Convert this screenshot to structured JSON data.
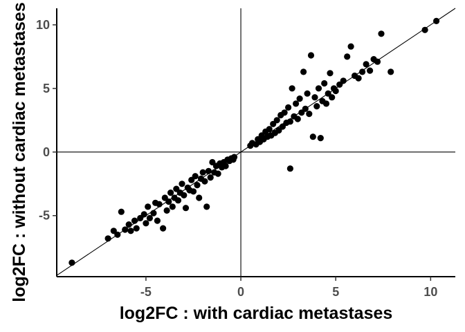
{
  "chart_data": {
    "type": "scatter",
    "title": "",
    "xlabel": "log2FC : with cardiac metastases",
    "ylabel": "log2FC : without cardiac metastases",
    "xlim": [
      -9.7,
      11.3
    ],
    "ylim": [
      -9.8,
      11.3
    ],
    "xticks": [
      -5,
      0,
      5,
      10
    ],
    "yticks": [
      -5,
      0,
      5,
      10
    ],
    "reference_lines": {
      "vertical_x": 0,
      "horizontal_y": 0,
      "identity_line": "y = x"
    },
    "grid": false,
    "point_color": "#000000",
    "line_color": "#000000",
    "points": [
      [
        -8.9,
        -8.7
      ],
      [
        -7.0,
        -6.8
      ],
      [
        -6.7,
        -6.2
      ],
      [
        -6.5,
        -6.5
      ],
      [
        -6.3,
        -4.7
      ],
      [
        -6.1,
        -6.1
      ],
      [
        -5.9,
        -5.7
      ],
      [
        -5.8,
        -6.2
      ],
      [
        -5.6,
        -5.4
      ],
      [
        -5.5,
        -6.0
      ],
      [
        -5.3,
        -5.2
      ],
      [
        -5.1,
        -4.9
      ],
      [
        -5.0,
        -5.6
      ],
      [
        -4.9,
        -4.3
      ],
      [
        -4.8,
        -5.2
      ],
      [
        -4.6,
        -4.8
      ],
      [
        -4.5,
        -4.0
      ],
      [
        -4.4,
        -5.4
      ],
      [
        -4.3,
        -4.1
      ],
      [
        -4.1,
        -6.0
      ],
      [
        -4.0,
        -3.6
      ],
      [
        -3.9,
        -4.6
      ],
      [
        -3.8,
        -3.9
      ],
      [
        -3.7,
        -3.2
      ],
      [
        -3.6,
        -4.3
      ],
      [
        -3.5,
        -3.6
      ],
      [
        -3.4,
        -2.9
      ],
      [
        -3.3,
        -3.8
      ],
      [
        -3.2,
        -3.2
      ],
      [
        -3.1,
        -2.5
      ],
      [
        -3.0,
        -3.4
      ],
      [
        -2.9,
        -4.4
      ],
      [
        -2.8,
        -2.8
      ],
      [
        -2.7,
        -3.0
      ],
      [
        -2.6,
        -2.2
      ],
      [
        -2.5,
        -3.1
      ],
      [
        -2.4,
        -1.9
      ],
      [
        -2.3,
        -2.6
      ],
      [
        -2.2,
        -3.6
      ],
      [
        -2.1,
        -2.1
      ],
      [
        -2.0,
        -1.6
      ],
      [
        -1.9,
        -2.3
      ],
      [
        -1.8,
        -4.3
      ],
      [
        -1.7,
        -1.5
      ],
      [
        -1.6,
        -2.0
      ],
      [
        -1.5,
        -0.8
      ],
      [
        -1.4,
        -1.6
      ],
      [
        -1.3,
        -1.1
      ],
      [
        -1.2,
        -1.7
      ],
      [
        -1.1,
        -0.9
      ],
      [
        -1.0,
        -1.2
      ],
      [
        -0.9,
        -0.8
      ],
      [
        -0.8,
        -1.1
      ],
      [
        -0.7,
        -0.6
      ],
      [
        -0.6,
        -0.7
      ],
      [
        -0.5,
        -0.5
      ],
      [
        -0.4,
        -0.6
      ],
      [
        -0.35,
        -0.4
      ],
      [
        0.5,
        0.5
      ],
      [
        0.6,
        0.7
      ],
      [
        0.8,
        0.6
      ],
      [
        0.9,
        1.0
      ],
      [
        1.0,
        0.8
      ],
      [
        1.1,
        1.3
      ],
      [
        1.2,
        1.0
      ],
      [
        1.3,
        1.6
      ],
      [
        1.4,
        1.2
      ],
      [
        1.5,
        1.8
      ],
      [
        1.6,
        1.3
      ],
      [
        1.7,
        2.2
      ],
      [
        1.8,
        1.5
      ],
      [
        1.9,
        2.5
      ],
      [
        2.0,
        1.7
      ],
      [
        2.1,
        2.9
      ],
      [
        2.2,
        2.0
      ],
      [
        2.3,
        3.1
      ],
      [
        2.4,
        2.3
      ],
      [
        2.5,
        3.5
      ],
      [
        2.6,
        2.4
      ],
      [
        2.6,
        -1.3
      ],
      [
        2.7,
        5.0
      ],
      [
        2.8,
        2.8
      ],
      [
        2.9,
        3.8
      ],
      [
        3.0,
        2.6
      ],
      [
        3.1,
        4.2
      ],
      [
        3.2,
        3.1
      ],
      [
        3.3,
        6.3
      ],
      [
        3.4,
        3.4
      ],
      [
        3.5,
        4.6
      ],
      [
        3.6,
        3.0
      ],
      [
        3.7,
        7.6
      ],
      [
        3.8,
        1.2
      ],
      [
        3.9,
        4.3
      ],
      [
        4.0,
        3.6
      ],
      [
        4.1,
        5.0
      ],
      [
        4.2,
        1.1
      ],
      [
        4.3,
        4.0
      ],
      [
        4.4,
        5.4
      ],
      [
        4.5,
        3.8
      ],
      [
        4.6,
        4.6
      ],
      [
        4.7,
        6.2
      ],
      [
        4.8,
        4.3
      ],
      [
        4.9,
        5.0
      ],
      [
        5.0,
        4.8
      ],
      [
        5.2,
        5.3
      ],
      [
        5.4,
        5.6
      ],
      [
        5.6,
        7.5
      ],
      [
        5.8,
        8.3
      ],
      [
        6.0,
        6.0
      ],
      [
        6.2,
        5.8
      ],
      [
        6.4,
        6.3
      ],
      [
        6.6,
        6.9
      ],
      [
        6.8,
        6.4
      ],
      [
        7.0,
        7.3
      ],
      [
        7.2,
        7.1
      ],
      [
        7.4,
        9.3
      ],
      [
        7.9,
        6.3
      ],
      [
        9.7,
        9.6
      ],
      [
        10.3,
        10.3
      ]
    ]
  }
}
